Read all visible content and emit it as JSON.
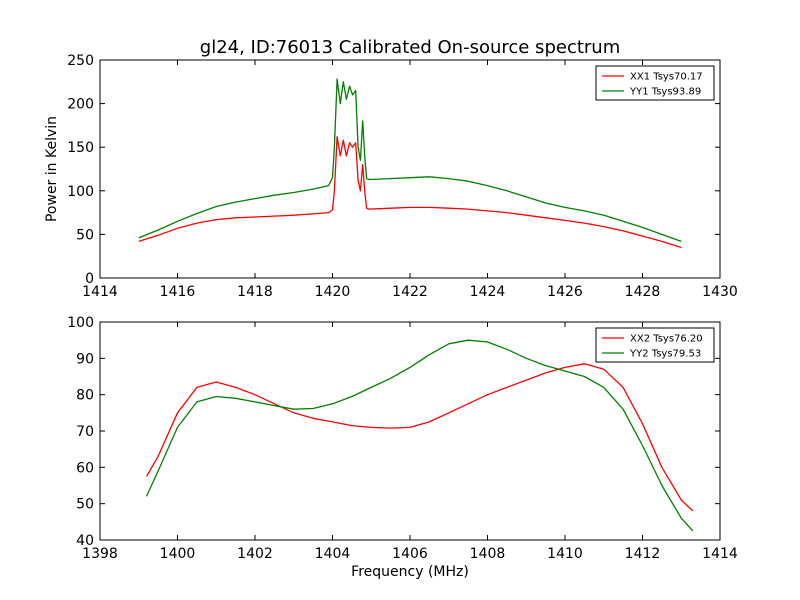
{
  "figure_title": "gl24, ID:76013 Calibrated On-source spectrum",
  "colors": {
    "xx": "#ff0000",
    "yy": "#008000",
    "axes": "#000000",
    "background": "#ffffff"
  },
  "chart_data": [
    {
      "type": "line",
      "ylabel": "Power in Kelvin",
      "xlabel": "",
      "xlim": [
        1414,
        1430
      ],
      "ylim": [
        0,
        250
      ],
      "xticks": [
        1414,
        1416,
        1418,
        1420,
        1422,
        1424,
        1426,
        1428,
        1430
      ],
      "yticks": [
        0,
        50,
        100,
        150,
        200,
        250
      ],
      "grid": false,
      "legend_position": "top-right",
      "series": [
        {
          "name": "XX1 Tsys70.17",
          "color": "#ff0000",
          "x": [
            1415.0,
            1415.5,
            1416.0,
            1416.5,
            1417.0,
            1417.5,
            1418.0,
            1418.5,
            1419.0,
            1419.5,
            1419.9,
            1420.0,
            1420.05,
            1420.12,
            1420.2,
            1420.28,
            1420.36,
            1420.44,
            1420.52,
            1420.6,
            1420.66,
            1420.72,
            1420.78,
            1420.83,
            1420.88,
            1420.95,
            1421.5,
            1422.0,
            1422.5,
            1423.0,
            1423.5,
            1424.0,
            1424.5,
            1425.0,
            1425.5,
            1426.0,
            1426.5,
            1427.0,
            1427.5,
            1428.0,
            1428.5,
            1429.0
          ],
          "y": [
            42,
            49,
            57,
            63,
            67,
            69,
            70,
            71,
            72,
            73.5,
            75,
            78,
            100,
            162,
            140,
            158,
            140,
            155,
            150,
            155,
            112,
            100,
            130,
            100,
            80,
            79,
            80,
            81,
            81,
            80,
            79,
            77,
            75,
            72,
            69,
            66,
            63,
            59,
            54,
            48,
            42,
            35
          ]
        },
        {
          "name": "YY1 Tsys93.89",
          "color": "#008000",
          "x": [
            1415.0,
            1415.5,
            1416.0,
            1416.5,
            1417.0,
            1417.5,
            1418.0,
            1418.5,
            1419.0,
            1419.5,
            1419.9,
            1420.0,
            1420.05,
            1420.12,
            1420.2,
            1420.28,
            1420.36,
            1420.44,
            1420.52,
            1420.6,
            1420.66,
            1420.72,
            1420.78,
            1420.83,
            1420.88,
            1420.95,
            1421.5,
            1422.0,
            1422.5,
            1423.0,
            1423.5,
            1424.0,
            1424.5,
            1425.0,
            1425.5,
            1426.0,
            1426.5,
            1427.0,
            1427.5,
            1428.0,
            1428.5,
            1429.0
          ],
          "y": [
            46,
            55,
            65,
            74,
            82,
            87,
            91,
            95,
            98,
            102,
            106,
            115,
            150,
            228,
            200,
            225,
            205,
            220,
            210,
            215,
            150,
            135,
            180,
            140,
            114,
            113,
            114,
            115,
            116,
            114,
            111,
            106,
            100,
            93,
            86,
            81,
            77,
            72,
            65,
            58,
            50,
            42
          ]
        }
      ]
    },
    {
      "type": "line",
      "ylabel": "",
      "xlabel": "Frequency (MHz)",
      "xlim": [
        1398,
        1414
      ],
      "ylim": [
        40,
        100
      ],
      "xticks": [
        1398,
        1400,
        1402,
        1404,
        1406,
        1408,
        1410,
        1412,
        1414
      ],
      "yticks": [
        40,
        50,
        60,
        70,
        80,
        90,
        100
      ],
      "grid": false,
      "legend_position": "top-right",
      "series": [
        {
          "name": "XX2 Tsys76.20",
          "color": "#ff0000",
          "x": [
            1399.2,
            1399.5,
            1400.0,
            1400.5,
            1401.0,
            1401.5,
            1402.0,
            1402.5,
            1403.0,
            1403.5,
            1404.0,
            1404.5,
            1405.0,
            1405.5,
            1406.0,
            1406.5,
            1407.0,
            1407.5,
            1408.0,
            1408.5,
            1409.0,
            1409.5,
            1410.0,
            1410.5,
            1411.0,
            1411.5,
            1412.0,
            1412.5,
            1413.0,
            1413.3
          ],
          "y": [
            57.5,
            63,
            75,
            82,
            83.5,
            82,
            80,
            77.5,
            75,
            73.5,
            72.5,
            71.5,
            71,
            70.8,
            71,
            72.5,
            75,
            77.5,
            80,
            82,
            84,
            86,
            87.5,
            88.5,
            87,
            82,
            72,
            60,
            51,
            48
          ]
        },
        {
          "name": "YY2 Tsys79.53",
          "color": "#008000",
          "x": [
            1399.2,
            1399.5,
            1400.0,
            1400.5,
            1401.0,
            1401.5,
            1402.0,
            1402.5,
            1403.0,
            1403.5,
            1404.0,
            1404.5,
            1405.0,
            1405.5,
            1406.0,
            1406.5,
            1407.0,
            1407.5,
            1408.0,
            1408.5,
            1409.0,
            1409.5,
            1410.0,
            1410.5,
            1411.0,
            1411.5,
            1412.0,
            1412.5,
            1413.0,
            1413.3
          ],
          "y": [
            52,
            59,
            71,
            78,
            79.5,
            79,
            78,
            77,
            76,
            76.2,
            77.5,
            79.5,
            82,
            84.5,
            87.5,
            91,
            94,
            95,
            94.5,
            92.5,
            90,
            88,
            86.5,
            85,
            82,
            76,
            66,
            55,
            46,
            42.5
          ]
        }
      ]
    }
  ]
}
